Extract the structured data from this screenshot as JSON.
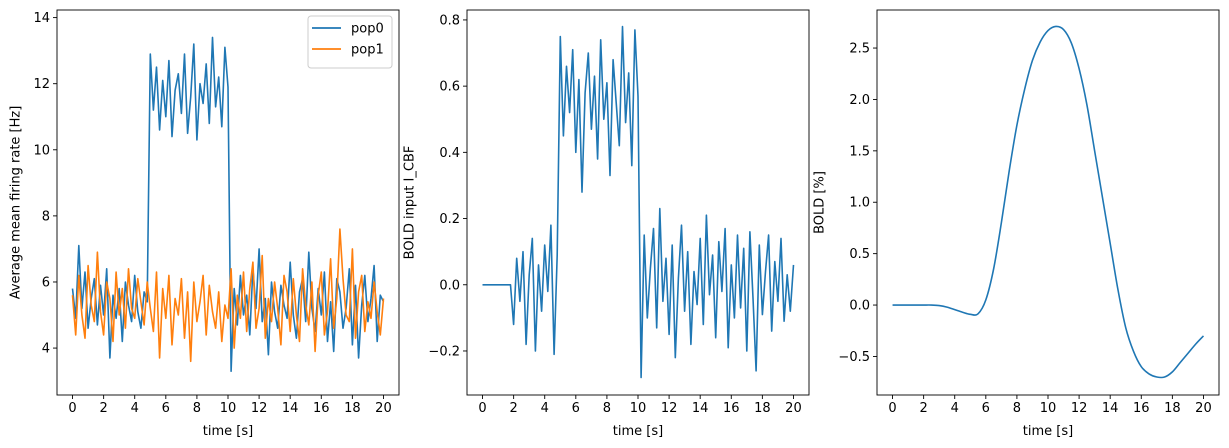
{
  "chart_data": [
    {
      "type": "line",
      "title": "",
      "xlabel": "time [s]",
      "ylabel": "Average mean firing rate [Hz]",
      "xlim": [
        -1,
        21
      ],
      "ylim": [
        2.58,
        14.23
      ],
      "xticks": [
        0,
        2,
        4,
        6,
        8,
        10,
        12,
        14,
        16,
        18,
        20
      ],
      "yticks": [
        4,
        6,
        8,
        10,
        12,
        14
      ],
      "ytick_labels": [
        "4",
        "6",
        "8",
        "10",
        "12",
        "14"
      ],
      "legend": {
        "placement": "top-right",
        "entries": [
          "pop0",
          "pop1"
        ]
      },
      "grid": false,
      "t_start": 0,
      "t_step": 0.2,
      "series": [
        {
          "name": "pop0",
          "color": "#1f77b4",
          "values": [
            5.8,
            4.9,
            7.1,
            5.2,
            6.3,
            4.6,
            5.5,
            6.1,
            4.7,
            5.9,
            5.0,
            6.4,
            3.7,
            5.6,
            4.9,
            5.8,
            4.2,
            6.0,
            5.3,
            4.8,
            6.2,
            5.1,
            4.6,
            5.7,
            5.4,
            12.9,
            11.2,
            12.5,
            10.6,
            12.1,
            11.0,
            12.7,
            10.4,
            11.8,
            12.3,
            11.1,
            12.9,
            10.5,
            11.6,
            13.2,
            10.3,
            12.0,
            11.4,
            12.6,
            10.8,
            13.4,
            11.3,
            12.2,
            10.7,
            13.1,
            11.9,
            3.3,
            5.8,
            4.7,
            6.2,
            5.0,
            5.6,
            4.4,
            6.4,
            5.2,
            7.0,
            4.8,
            5.5,
            3.8,
            6.0,
            5.1,
            4.6,
            5.9,
            5.3,
            4.9,
            6.6,
            5.0,
            4.3,
            5.7,
            6.1,
            4.8,
            6.9,
            5.2,
            4.5,
            5.8,
            5.0,
            6.3,
            4.2,
            5.4,
            3.9,
            6.1,
            5.7,
            4.6,
            5.2,
            6.4,
            4.1,
            5.9,
            3.7,
            5.3,
            6.2,
            4.8,
            5.5,
            6.5,
            4.2,
            5.6,
            5.4
          ]
        },
        {
          "name": "pop1",
          "color": "#ff7f0e",
          "values": [
            5.6,
            4.4,
            6.2,
            5.0,
            4.3,
            6.5,
            5.3,
            4.8,
            6.9,
            5.1,
            4.4,
            6.0,
            5.5,
            4.2,
            6.3,
            5.0,
            5.8,
            4.6,
            6.4,
            5.2,
            4.9,
            6.1,
            5.4,
            4.7,
            6.0,
            5.2,
            4.5,
            6.3,
            3.7,
            5.8,
            4.9,
            6.2,
            4.1,
            5.5,
            5.0,
            6.1,
            4.3,
            5.7,
            3.6,
            6.0,
            4.8,
            5.4,
            6.2,
            4.4,
            5.9,
            5.1,
            4.6,
            5.7,
            4.2,
            5.3,
            4.9,
            6.4,
            4.0,
            5.6,
            4.9,
            6.3,
            4.5,
            5.8,
            6.6,
            4.6,
            5.2,
            6.8,
            4.3,
            5.5,
            4.8,
            6.0,
            5.2,
            4.1,
            6.2,
            5.7,
            4.5,
            6.1,
            5.0,
            4.2,
            6.4,
            5.3,
            4.7,
            6.0,
            3.9,
            5.6,
            6.3,
            4.4,
            5.1,
            6.7,
            4.6,
            5.5,
            7.6,
            6.1,
            5.0,
            4.8,
            7.0,
            4.3,
            5.7,
            6.2,
            4.5,
            5.4,
            4.9,
            6.0,
            5.1,
            4.4,
            5.5
          ]
        }
      ]
    },
    {
      "type": "line",
      "title": "",
      "xlabel": "time [s]",
      "ylabel": "BOLD input I_CBF",
      "xlim": [
        -1,
        21
      ],
      "ylim": [
        -0.333,
        0.83
      ],
      "xticks": [
        0,
        2,
        4,
        6,
        8,
        10,
        12,
        14,
        16,
        18,
        20
      ],
      "yticks": [
        -0.2,
        0.0,
        0.2,
        0.4,
        0.6,
        0.8
      ],
      "ytick_labels": [
        "−0.2",
        "0.0",
        "0.2",
        "0.4",
        "0.6",
        "0.8"
      ],
      "grid": false,
      "t_start": 0,
      "t_step": 0.2,
      "series": [
        {
          "name": "I_CBF",
          "color": "#1f77b4",
          "values": [
            0,
            0,
            0,
            0,
            0,
            0,
            0,
            0,
            0,
            0,
            -0.12,
            0.08,
            -0.05,
            0.1,
            -0.18,
            0.03,
            0.14,
            -0.2,
            0.06,
            -0.08,
            0.12,
            -0.02,
            0.18,
            -0.21,
            0.09,
            0.75,
            0.45,
            0.66,
            0.52,
            0.71,
            0.4,
            0.62,
            0.28,
            0.58,
            0.7,
            0.47,
            0.63,
            0.38,
            0.74,
            0.5,
            0.61,
            0.33,
            0.68,
            0.55,
            0.42,
            0.78,
            0.49,
            0.64,
            0.36,
            0.77,
            0.57,
            -0.28,
            0.15,
            -0.1,
            0.05,
            0.17,
            -0.13,
            0.23,
            -0.05,
            0.08,
            -0.15,
            0.12,
            -0.22,
            0.02,
            0.18,
            -0.08,
            0.1,
            -0.18,
            0.04,
            -0.06,
            0.14,
            -0.12,
            0.21,
            -0.03,
            0.09,
            -0.16,
            0.13,
            -0.02,
            0.17,
            -0.19,
            0.06,
            -0.1,
            0.15,
            -0.07,
            0.11,
            -0.2,
            0.16,
            -0.04,
            -0.26,
            0.12,
            -0.09,
            0.04,
            0.15,
            -0.14,
            0.07,
            -0.05,
            0.14,
            -0.11,
            0.03,
            -0.08,
            0.06
          ]
        }
      ]
    },
    {
      "type": "line",
      "title": "",
      "xlabel": "time [s]",
      "ylabel": "BOLD [%]",
      "xlim": [
        -1,
        21
      ],
      "ylim": [
        -0.875,
        2.87
      ],
      "xticks": [
        0,
        2,
        4,
        6,
        8,
        10,
        12,
        14,
        16,
        18,
        20
      ],
      "yticks": [
        -0.5,
        0.0,
        0.5,
        1.0,
        1.5,
        2.0,
        2.5
      ],
      "ytick_labels": [
        "−0.5",
        "0.0",
        "0.5",
        "1.0",
        "1.5",
        "2.0",
        "2.5"
      ],
      "grid": false,
      "smooth": true,
      "t_start": 0,
      "t_step": 0.5,
      "series": [
        {
          "name": "BOLD",
          "color": "#1f77b4",
          "values": [
            0,
            0,
            0,
            0,
            0,
            0,
            -0.005,
            -0.02,
            -0.045,
            -0.07,
            -0.09,
            -0.085,
            0.05,
            0.35,
            0.8,
            1.3,
            1.75,
            2.1,
            2.38,
            2.56,
            2.67,
            2.71,
            2.68,
            2.55,
            2.3,
            1.95,
            1.5,
            1.05,
            0.6,
            0.15,
            -0.22,
            -0.45,
            -0.6,
            -0.67,
            -0.7,
            -0.7,
            -0.65,
            -0.56,
            -0.47,
            -0.38,
            -0.3
          ]
        }
      ]
    }
  ]
}
